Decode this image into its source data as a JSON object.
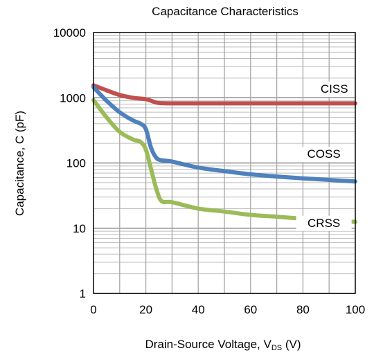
{
  "chart_data": {
    "type": "line",
    "title": "Capacitance Characteristics",
    "xlabel": {
      "main": "Drain-Source Voltage, V",
      "sub": "DS",
      "unit": " (V)"
    },
    "ylabel": "Capacitance, C (pF)",
    "xlim": [
      0,
      100
    ],
    "ylim": [
      1,
      10000
    ],
    "yscale": "log",
    "grid": true,
    "x_ticks": [
      0,
      20,
      40,
      60,
      80,
      100
    ],
    "x_tick_labels": [
      "0",
      "20",
      "40",
      "60",
      "80",
      "100"
    ],
    "y_ticks": [
      1,
      10,
      100,
      1000,
      10000
    ],
    "y_tick_labels": [
      "1",
      "10",
      "100",
      "1000",
      "10000"
    ],
    "series": [
      {
        "name": "CISS",
        "color": "#c0504d",
        "label_at": [
          92,
          1200
        ],
        "points": [
          [
            0,
            1550
          ],
          [
            5,
            1300
          ],
          [
            10,
            1100
          ],
          [
            15,
            1000
          ],
          [
            20,
            950
          ],
          [
            23,
            870
          ],
          [
            25,
            830
          ],
          [
            30,
            820
          ],
          [
            40,
            820
          ],
          [
            60,
            820
          ],
          [
            80,
            820
          ],
          [
            100,
            820
          ]
        ]
      },
      {
        "name": "COSS",
        "color": "#4f81bd",
        "label_at": [
          88,
          120
        ],
        "points": [
          [
            0,
            1450
          ],
          [
            5,
            900
          ],
          [
            10,
            600
          ],
          [
            15,
            450
          ],
          [
            18,
            400
          ],
          [
            20,
            330
          ],
          [
            22,
            170
          ],
          [
            24,
            120
          ],
          [
            26,
            110
          ],
          [
            30,
            105
          ],
          [
            40,
            85
          ],
          [
            50,
            75
          ],
          [
            60,
            67
          ],
          [
            70,
            62
          ],
          [
            80,
            58
          ],
          [
            90,
            55
          ],
          [
            100,
            52
          ]
        ]
      },
      {
        "name": "CRSS",
        "color": "#9bbb59",
        "label_at": [
          88,
          10.5
        ],
        "points": [
          [
            0,
            920
          ],
          [
            5,
            500
          ],
          [
            10,
            300
          ],
          [
            15,
            230
          ],
          [
            18,
            210
          ],
          [
            20,
            160
          ],
          [
            22,
            80
          ],
          [
            24,
            40
          ],
          [
            26,
            26
          ],
          [
            30,
            25
          ],
          [
            40,
            20
          ],
          [
            50,
            18
          ],
          [
            60,
            16
          ],
          [
            70,
            15
          ],
          [
            80,
            14
          ],
          [
            90,
            13
          ],
          [
            100,
            12.5
          ]
        ]
      }
    ]
  }
}
